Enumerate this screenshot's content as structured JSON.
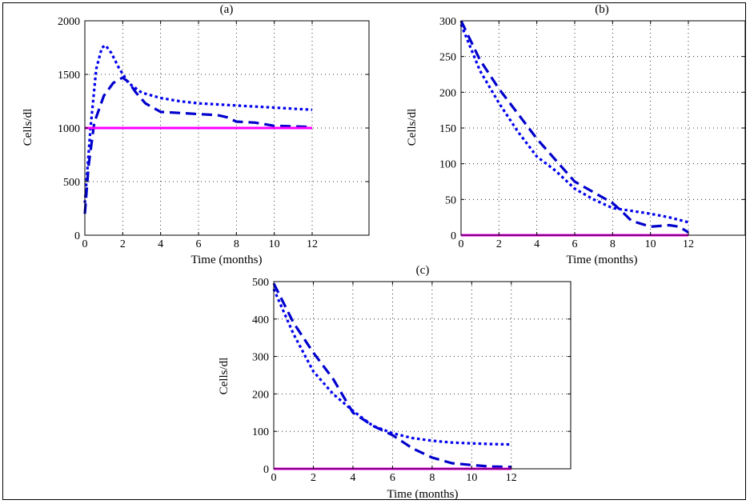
{
  "colors": {
    "dashed": "#0000cc",
    "dotted": "#0000ee",
    "flat": "#ff00ff"
  },
  "chart_data": [
    {
      "type": "line",
      "title": "(a)",
      "xlabel": "Time (months)",
      "ylabel": "Cells/dl",
      "xlim": [
        0,
        15
      ],
      "ylim": [
        0,
        2000
      ],
      "xticks": [
        0,
        2,
        4,
        6,
        8,
        10,
        12
      ],
      "yticks": [
        0,
        500,
        1000,
        1500,
        2000
      ],
      "grid": true,
      "series": [
        {
          "style": "dotted",
          "x": [
            0,
            0.3,
            0.6,
            0.9,
            1.1,
            1.4,
            1.8,
            2.3,
            3,
            4,
            5,
            6,
            7,
            8,
            9,
            10,
            11,
            12
          ],
          "y": [
            300,
            1000,
            1550,
            1750,
            1770,
            1700,
            1560,
            1420,
            1330,
            1280,
            1250,
            1230,
            1220,
            1210,
            1200,
            1190,
            1180,
            1170
          ]
        },
        {
          "style": "dashed",
          "x": [
            0,
            0.2,
            0.5,
            1,
            1.5,
            2,
            2.3,
            2.7,
            3.2,
            4,
            5,
            6,
            7,
            7.5,
            8,
            9,
            10,
            11,
            12
          ],
          "y": [
            200,
            650,
            1050,
            1300,
            1420,
            1470,
            1430,
            1330,
            1230,
            1150,
            1140,
            1130,
            1120,
            1100,
            1060,
            1050,
            1020,
            1015,
            1010
          ]
        },
        {
          "style": "solid",
          "x": [
            0,
            12
          ],
          "y": [
            1000,
            1000
          ]
        }
      ]
    },
    {
      "type": "line",
      "title": "(b)",
      "xlabel": "Time (months)",
      "ylabel": "Cells/dl",
      "xlim": [
        0,
        15
      ],
      "ylim": [
        0,
        300
      ],
      "xticks": [
        0,
        2,
        4,
        6,
        8,
        10,
        12
      ],
      "yticks": [
        0,
        50,
        100,
        150,
        200,
        250,
        300
      ],
      "grid": true,
      "series": [
        {
          "style": "dashed",
          "x": [
            0,
            1,
            2,
            3,
            4,
            5,
            6,
            7,
            8,
            8.5,
            9,
            10,
            11,
            11.5,
            12
          ],
          "y": [
            300,
            245,
            205,
            170,
            135,
            105,
            75,
            60,
            45,
            33,
            20,
            12,
            14,
            12,
            4
          ]
        },
        {
          "style": "dotted",
          "x": [
            0,
            1,
            2,
            3,
            4,
            5,
            6,
            7,
            8,
            9,
            10,
            11,
            12
          ],
          "y": [
            295,
            230,
            185,
            145,
            110,
            90,
            65,
            50,
            38,
            34,
            30,
            25,
            18
          ]
        },
        {
          "style": "solid",
          "x": [
            0,
            12
          ],
          "y": [
            0,
            0
          ]
        }
      ]
    },
    {
      "type": "line",
      "title": "(c)",
      "xlabel": "Time (months)",
      "ylabel": "Cells/dl",
      "xlim": [
        0,
        15
      ],
      "ylim": [
        0,
        500
      ],
      "xticks": [
        0,
        2,
        4,
        6,
        8,
        10,
        12
      ],
      "yticks": [
        0,
        100,
        200,
        300,
        400,
        500
      ],
      "grid": true,
      "series": [
        {
          "style": "dashed",
          "x": [
            0,
            1,
            2,
            3,
            4,
            5,
            6,
            7,
            8,
            9,
            10,
            11,
            12
          ],
          "y": [
            495,
            390,
            310,
            240,
            150,
            115,
            90,
            55,
            30,
            15,
            10,
            6,
            5
          ]
        },
        {
          "style": "dotted",
          "x": [
            0,
            1,
            2,
            3,
            4,
            5,
            6,
            7,
            8,
            9,
            10,
            11,
            12
          ],
          "y": [
            480,
            360,
            260,
            200,
            155,
            115,
            95,
            82,
            75,
            70,
            68,
            66,
            65
          ]
        },
        {
          "style": "solid",
          "x": [
            0,
            12
          ],
          "y": [
            0,
            0
          ]
        }
      ]
    }
  ]
}
